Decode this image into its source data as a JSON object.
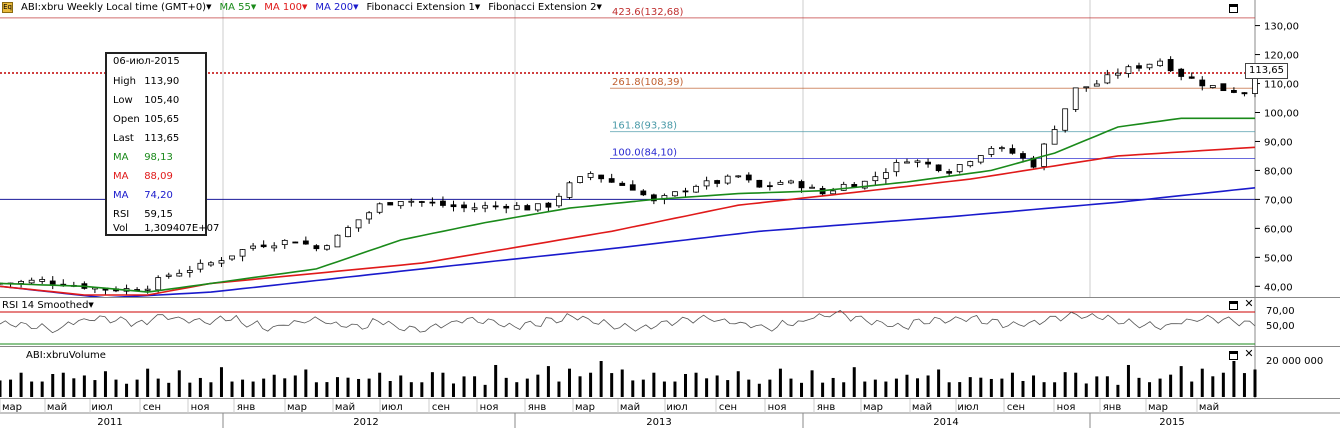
{
  "header": {
    "symbol_label": "ABI:xbru Weekly Local time (GMT+0)",
    "ma55_label": "MA 55",
    "ma100_label": "MA 100",
    "ma200_label": "MA 200",
    "fib1_label": "Fibonacci Extension 1",
    "fib2_label": "Fibonacci Extension 2"
  },
  "colors": {
    "ma55": "#1a8a1a",
    "ma100": "#e01a1a",
    "ma200": "#1a1acc",
    "fib_orange": "#c06030",
    "fib_teal": "#4a9aa8",
    "fib_blue": "#2a2ad0",
    "price_line": "#c00000"
  },
  "info_box": {
    "date": "06-июл-2015",
    "high_label": "High",
    "high": "113,90",
    "low_label": "Low",
    "low": "105,40",
    "open_label": "Open",
    "open": "105,65",
    "last_label": "Last",
    "last": "113,65",
    "ma55_label": "MA",
    "ma55": "98,13",
    "ma100_label": "MA",
    "ma100": "88,09",
    "ma200_label": "MA",
    "ma200": "74,20",
    "rsi_label": "RSI",
    "rsi": "59,15",
    "vol_label": "Vol",
    "vol": "1,309407E+07"
  },
  "current_price_tag": "113,65",
  "fib_levels": [
    {
      "label": "423.6(132,68)",
      "value": 132.68
    },
    {
      "label": "261.8(108,39)",
      "value": 108.39
    },
    {
      "label": "161.8(93,38)",
      "value": 93.38
    },
    {
      "label": "100.0(84,10)",
      "value": 84.1
    }
  ],
  "rsi_panel": {
    "title": "RSI 14 Smoothed",
    "ticks": [
      "70,00",
      "50,00"
    ]
  },
  "volume_panel": {
    "title": "ABI:xbruVolume",
    "ticks": [
      "20 000 000"
    ]
  },
  "chart_data": {
    "type": "candlestick",
    "title": "ABI:xbru Weekly",
    "ylim": [
      37,
      134
    ],
    "price_ticks": [
      "130,00",
      "120,00",
      "110,00",
      "100,00",
      "90,00",
      "80,00",
      "70,00",
      "60,00",
      "50,00",
      "40,00"
    ],
    "price_tick_values": [
      130,
      120,
      110,
      100,
      90,
      80,
      70,
      60,
      50,
      40
    ],
    "horizontal_line": 70,
    "x_month_labels": [
      "мар",
      "май",
      "июл",
      "сен",
      "ноя",
      "янв",
      "мар",
      "май",
      "июл",
      "сен",
      "ноя",
      "янв",
      "мар",
      "май",
      "июл",
      "сен",
      "ноя",
      "янв",
      "мар",
      "май",
      "июл",
      "сен",
      "ноя",
      "янв",
      "мар",
      "май"
    ],
    "x_year_labels": [
      "2011",
      "2012",
      "2013",
      "2014",
      "2015"
    ],
    "close_path": [
      [
        0,
        41
      ],
      [
        4,
        42
      ],
      [
        8,
        40
      ],
      [
        10,
        39
      ],
      [
        12,
        39
      ],
      [
        14,
        40
      ],
      [
        16,
        44
      ],
      [
        20,
        48
      ],
      [
        24,
        54
      ],
      [
        28,
        56
      ],
      [
        30,
        53
      ],
      [
        32,
        57
      ],
      [
        34,
        63
      ],
      [
        36,
        68
      ],
      [
        38,
        70
      ],
      [
        40,
        69
      ],
      [
        44,
        67
      ],
      [
        48,
        68
      ],
      [
        50,
        67
      ],
      [
        52,
        68
      ],
      [
        54,
        75
      ],
      [
        56,
        79
      ],
      [
        58,
        76
      ],
      [
        60,
        74
      ],
      [
        62,
        69
      ],
      [
        64,
        72
      ],
      [
        66,
        75
      ],
      [
        68,
        76
      ],
      [
        70,
        78
      ],
      [
        72,
        74
      ],
      [
        74,
        76
      ],
      [
        76,
        75
      ],
      [
        78,
        72
      ],
      [
        80,
        75
      ],
      [
        82,
        76
      ],
      [
        84,
        80
      ],
      [
        86,
        84
      ],
      [
        88,
        82
      ],
      [
        90,
        80
      ],
      [
        92,
        84
      ],
      [
        94,
        88
      ],
      [
        96,
        86
      ],
      [
        98,
        82
      ],
      [
        100,
        95
      ],
      [
        102,
        108
      ],
      [
        104,
        110
      ],
      [
        106,
        114
      ],
      [
        108,
        116
      ],
      [
        110,
        118
      ],
      [
        112,
        113
      ],
      [
        114,
        110
      ],
      [
        116,
        108
      ],
      [
        118,
        107
      ],
      [
        119,
        113
      ]
    ],
    "ma55_path": [
      [
        0,
        41
      ],
      [
        8,
        40
      ],
      [
        14,
        38
      ],
      [
        20,
        41
      ],
      [
        30,
        46
      ],
      [
        38,
        56
      ],
      [
        46,
        62
      ],
      [
        54,
        67
      ],
      [
        62,
        70
      ],
      [
        70,
        72
      ],
      [
        78,
        73
      ],
      [
        86,
        76
      ],
      [
        94,
        80
      ],
      [
        100,
        86
      ],
      [
        106,
        95
      ],
      [
        112,
        98
      ],
      [
        119,
        98
      ]
    ],
    "ma100_path": [
      [
        0,
        40
      ],
      [
        8,
        37
      ],
      [
        14,
        37
      ],
      [
        20,
        41
      ],
      [
        40,
        48
      ],
      [
        58,
        59
      ],
      [
        70,
        68
      ],
      [
        80,
        72
      ],
      [
        92,
        77
      ],
      [
        106,
        85
      ],
      [
        119,
        88
      ]
    ],
    "ma200_path": [
      [
        0,
        40
      ],
      [
        10,
        36
      ],
      [
        20,
        38
      ],
      [
        40,
        46
      ],
      [
        58,
        53
      ],
      [
        72,
        59
      ],
      [
        90,
        64
      ],
      [
        106,
        69
      ],
      [
        119,
        74
      ]
    ],
    "rsi_values": [
      55,
      52,
      48,
      58,
      62,
      60,
      56,
      64,
      60,
      58,
      62,
      55,
      50,
      56,
      60,
      54,
      52,
      58,
      50,
      48,
      54,
      60,
      58,
      52,
      55,
      60,
      64,
      58,
      52,
      50,
      56,
      60,
      62,
      58,
      54,
      50,
      56,
      64,
      68,
      62,
      56,
      52,
      58,
      60,
      62,
      58,
      54,
      56,
      62,
      66,
      64,
      58,
      54,
      52,
      58,
      62,
      60,
      56
    ],
    "volume_values": [
      9,
      7,
      11,
      8,
      6,
      10,
      12,
      7,
      9,
      8,
      14,
      7,
      6,
      9,
      11,
      8,
      7,
      10,
      6,
      9,
      8,
      12,
      7,
      9,
      6,
      8,
      11,
      7,
      9,
      13,
      8,
      6,
      9,
      10,
      7,
      8,
      12,
      6,
      9,
      7,
      8,
      10,
      11,
      7,
      8,
      9,
      6,
      12,
      8,
      7,
      10,
      9,
      14,
      8,
      11,
      9,
      12,
      15,
      10,
      13
    ]
  }
}
